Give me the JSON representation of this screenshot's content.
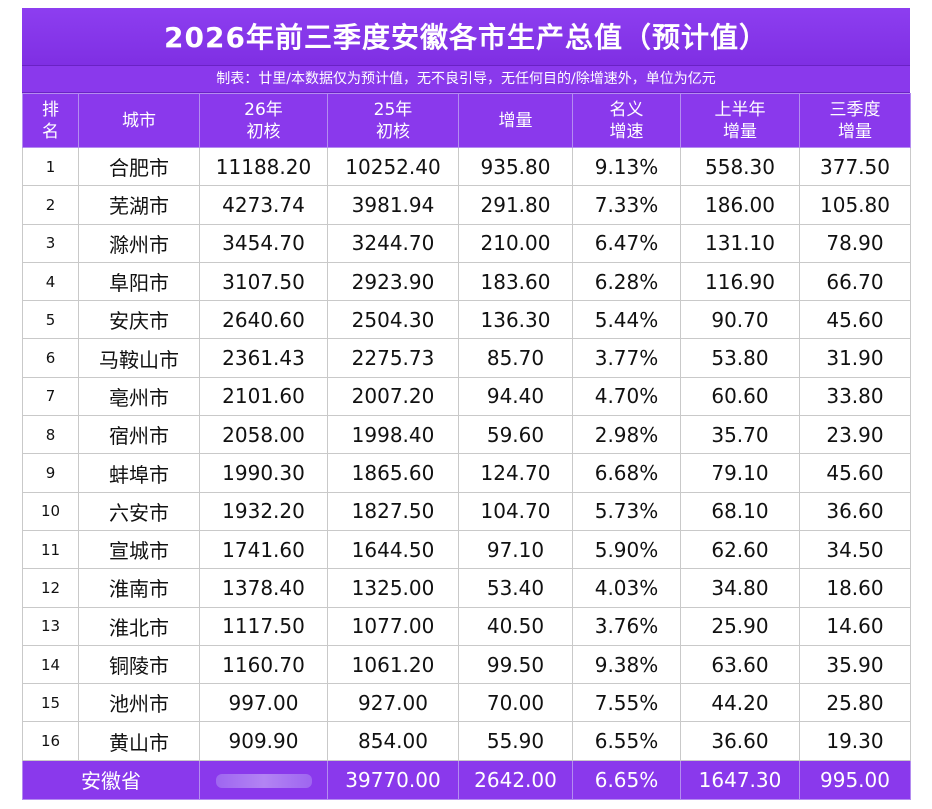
{
  "title": "2026年前三季度安徽各市生产总值（预计值）",
  "note": "制表：廿里/本数据仅为预计值，无不良引导，无任何目的/除增速外，单位为亿元",
  "headers": {
    "rank": [
      "排",
      "名"
    ],
    "city": "城市",
    "cur": [
      "26年",
      "初核"
    ],
    "prev": [
      "25年",
      "初核"
    ],
    "inc": "增量",
    "rate": [
      "名义",
      "增速"
    ],
    "h1": [
      "上半年",
      "增量"
    ],
    "q3": [
      "三季度",
      "增量"
    ]
  },
  "rows": [
    {
      "rank": "1",
      "city": "合肥市",
      "cur": "11188.20",
      "prev": "10252.40",
      "inc": "935.80",
      "rate": "9.13%",
      "h1": "558.30",
      "q3": "377.50"
    },
    {
      "rank": "2",
      "city": "芜湖市",
      "cur": "4273.74",
      "prev": "3981.94",
      "inc": "291.80",
      "rate": "7.33%",
      "h1": "186.00",
      "q3": "105.80"
    },
    {
      "rank": "3",
      "city": "滁州市",
      "cur": "3454.70",
      "prev": "3244.70",
      "inc": "210.00",
      "rate": "6.47%",
      "h1": "131.10",
      "q3": "78.90"
    },
    {
      "rank": "4",
      "city": "阜阳市",
      "cur": "3107.50",
      "prev": "2923.90",
      "inc": "183.60",
      "rate": "6.28%",
      "h1": "116.90",
      "q3": "66.70"
    },
    {
      "rank": "5",
      "city": "安庆市",
      "cur": "2640.60",
      "prev": "2504.30",
      "inc": "136.30",
      "rate": "5.44%",
      "h1": "90.70",
      "q3": "45.60"
    },
    {
      "rank": "6",
      "city": "马鞍山市",
      "cur": "2361.43",
      "prev": "2275.73",
      "inc": "85.70",
      "rate": "3.77%",
      "h1": "53.80",
      "q3": "31.90"
    },
    {
      "rank": "7",
      "city": "亳州市",
      "cur": "2101.60",
      "prev": "2007.20",
      "inc": "94.40",
      "rate": "4.70%",
      "h1": "60.60",
      "q3": "33.80"
    },
    {
      "rank": "8",
      "city": "宿州市",
      "cur": "2058.00",
      "prev": "1998.40",
      "inc": "59.60",
      "rate": "2.98%",
      "h1": "35.70",
      "q3": "23.90"
    },
    {
      "rank": "9",
      "city": "蚌埠市",
      "cur": "1990.30",
      "prev": "1865.60",
      "inc": "124.70",
      "rate": "6.68%",
      "h1": "79.10",
      "q3": "45.60"
    },
    {
      "rank": "10",
      "city": "六安市",
      "cur": "1932.20",
      "prev": "1827.50",
      "inc": "104.70",
      "rate": "5.73%",
      "h1": "68.10",
      "q3": "36.60"
    },
    {
      "rank": "11",
      "city": "宣城市",
      "cur": "1741.60",
      "prev": "1644.50",
      "inc": "97.10",
      "rate": "5.90%",
      "h1": "62.60",
      "q3": "34.50"
    },
    {
      "rank": "12",
      "city": "淮南市",
      "cur": "1378.40",
      "prev": "1325.00",
      "inc": "53.40",
      "rate": "4.03%",
      "h1": "34.80",
      "q3": "18.60"
    },
    {
      "rank": "13",
      "city": "淮北市",
      "cur": "1117.50",
      "prev": "1077.00",
      "inc": "40.50",
      "rate": "3.76%",
      "h1": "25.90",
      "q3": "14.60"
    },
    {
      "rank": "14",
      "city": "铜陵市",
      "cur": "1160.70",
      "prev": "1061.20",
      "inc": "99.50",
      "rate": "9.38%",
      "h1": "63.60",
      "q3": "35.90"
    },
    {
      "rank": "15",
      "city": "池州市",
      "cur": "997.00",
      "prev": "927.00",
      "inc": "70.00",
      "rate": "7.55%",
      "h1": "44.20",
      "q3": "25.80"
    },
    {
      "rank": "16",
      "city": "黄山市",
      "cur": "909.90",
      "prev": "854.00",
      "inc": "55.90",
      "rate": "6.55%",
      "h1": "36.60",
      "q3": "19.30"
    }
  ],
  "total": {
    "label": "安徽省",
    "prev": "39770.00",
    "inc": "2642.00",
    "rate": "6.65%",
    "h1": "1647.30",
    "q3": "995.00"
  },
  "colors": {
    "header_purple": "#8a39ec",
    "grid": "#c9c9c9"
  }
}
